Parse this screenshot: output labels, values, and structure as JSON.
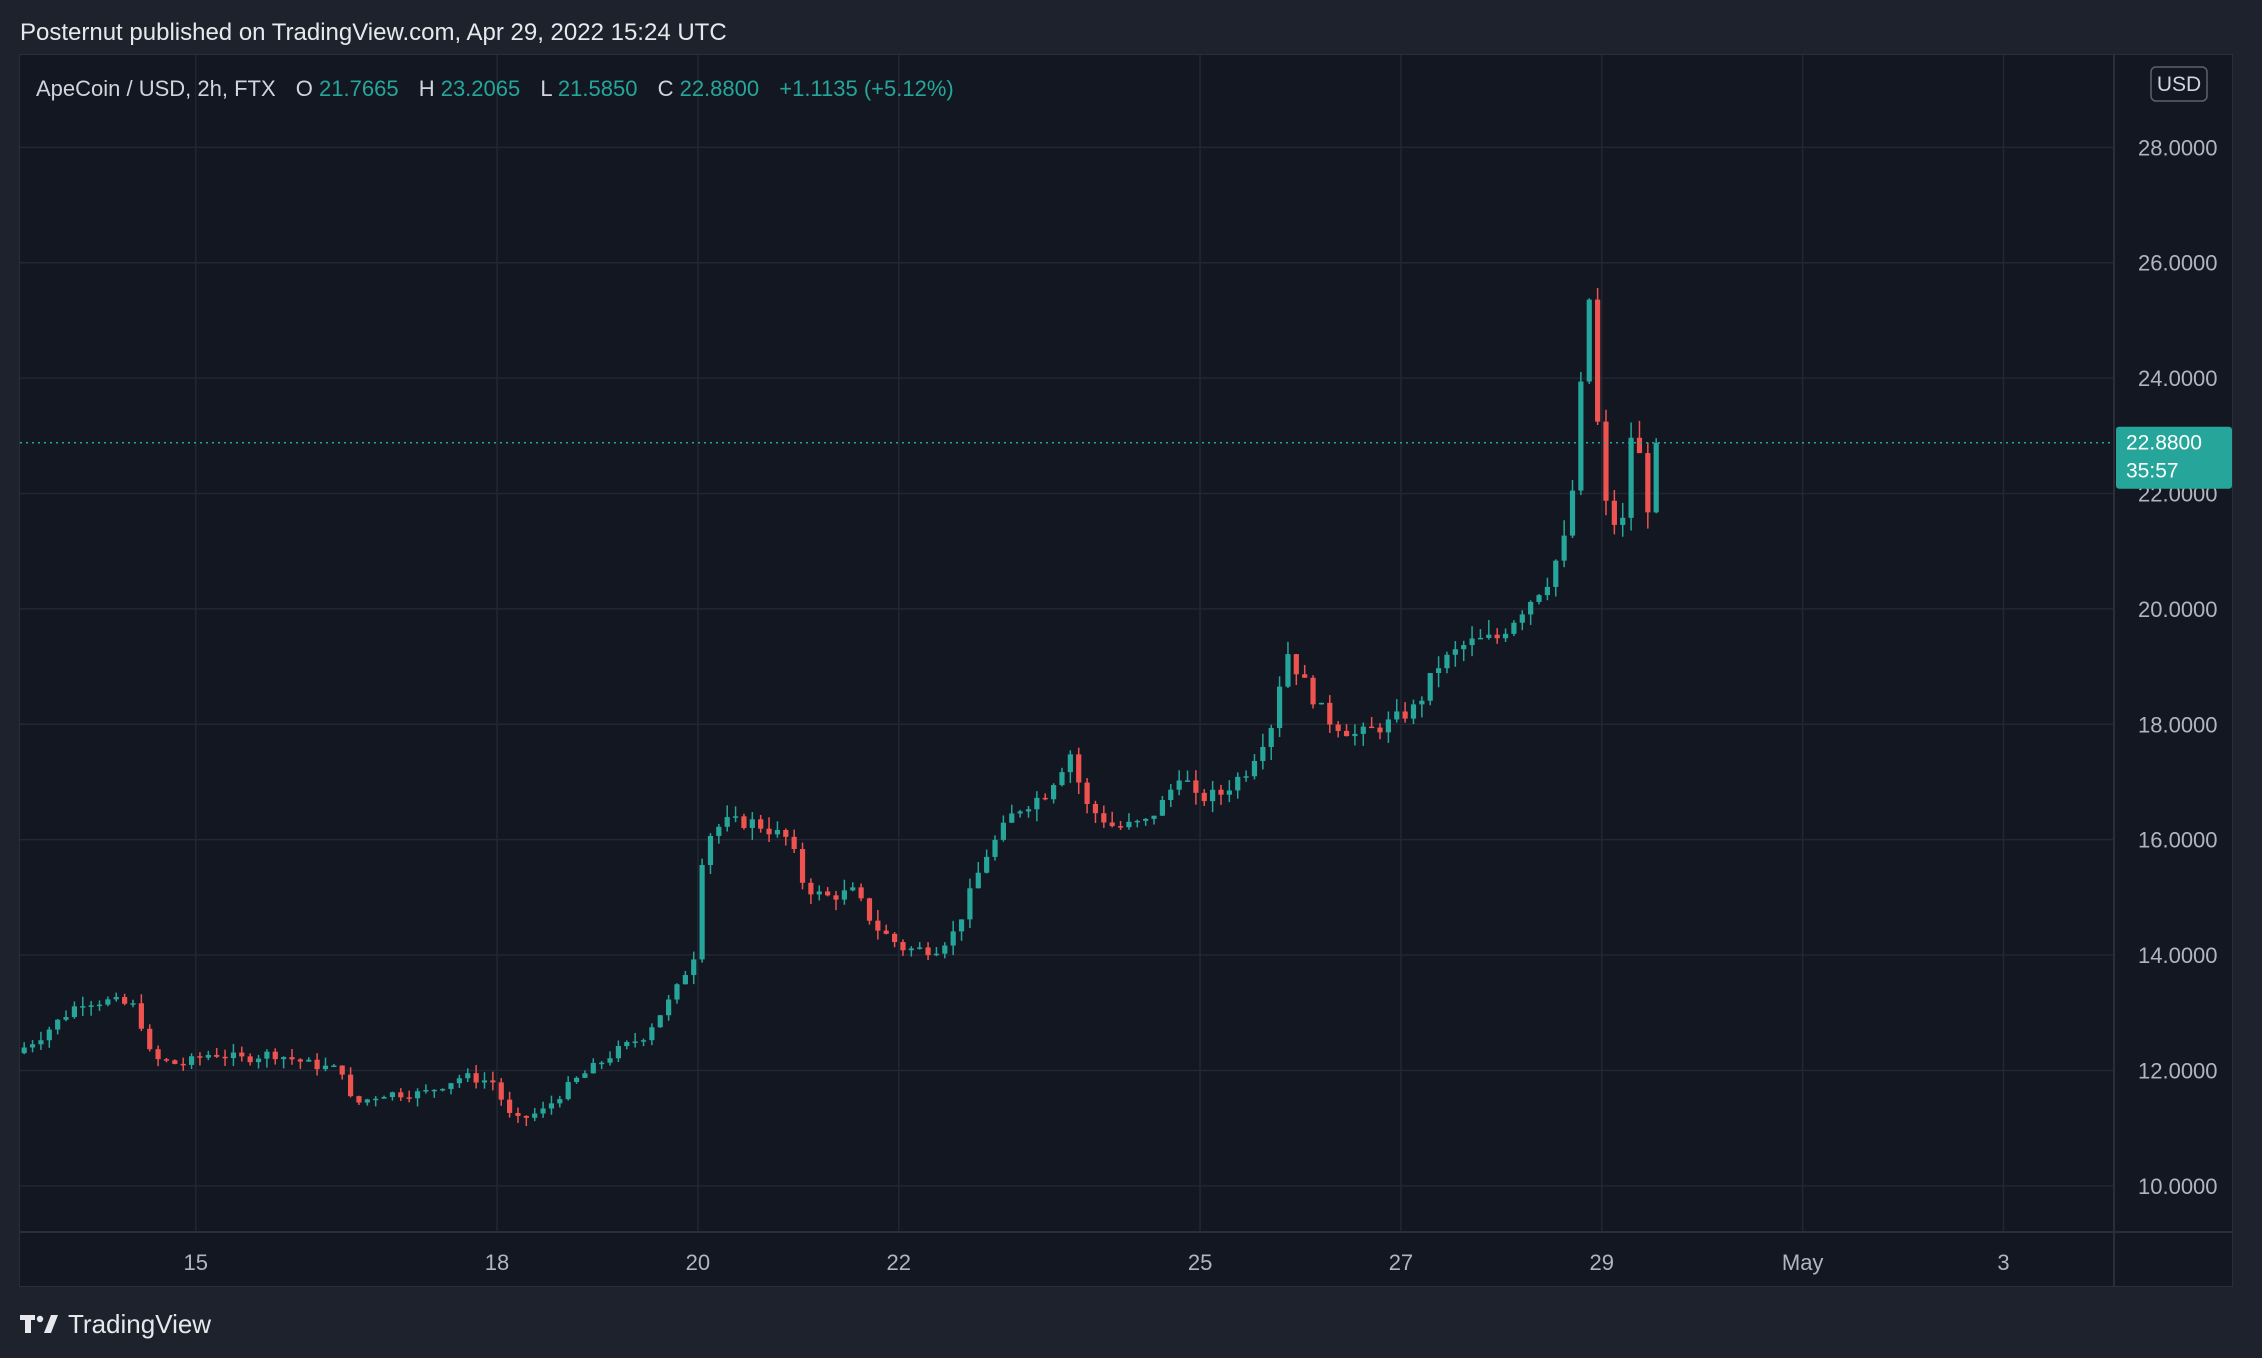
{
  "header": {
    "published_line": "Posternut published on TradingView.com, Apr 29, 2022 15:24 UTC"
  },
  "legend": {
    "symbol": "ApeCoin / USD, 2h, FTX",
    "open_label": "O",
    "open_value": "21.7665",
    "high_label": "H",
    "high_value": "23.2065",
    "low_label": "L",
    "low_value": "21.5850",
    "close_label": "C",
    "close_value": "22.8800",
    "change": "+1.1135 (+5.12%)"
  },
  "currency_badge": "USD",
  "price_tag": {
    "price": "22.8800",
    "countdown": "35:57"
  },
  "footer": {
    "logo_icon": "tradingview-logo-icon",
    "logo_text": "TradingView"
  },
  "colors": {
    "up": "#26a69a",
    "down": "#ef5350",
    "background": "#131722",
    "grid": "#232733",
    "axis_text": "#b2b5be"
  },
  "chart_data": {
    "type": "candlestick",
    "interval": "2h",
    "ylim": [
      9.2,
      29.6
    ],
    "yticks": [
      "28.0000",
      "26.0000",
      "24.0000",
      "22.0000",
      "20.0000",
      "18.0000",
      "16.0000",
      "14.0000",
      "12.0000",
      "10.0000"
    ],
    "xticks": [
      {
        "label": "15",
        "day": 15
      },
      {
        "label": "18",
        "day": 18
      },
      {
        "label": "20",
        "day": 20
      },
      {
        "label": "22",
        "day": 22
      },
      {
        "label": "25",
        "day": 25
      },
      {
        "label": "27",
        "day": 27
      },
      {
        "label": "29",
        "day": 29
      },
      {
        "label": "May",
        "day": 31
      },
      {
        "label": "3",
        "day": 33
      }
    ],
    "xlim_days": [
      13.25,
      34.1
    ],
    "last_price": 22.88,
    "keyframes": [
      [
        13.25,
        12.3
      ],
      [
        13.5,
        12.6
      ],
      [
        13.9,
        13.2
      ],
      [
        14.2,
        13.2
      ],
      [
        14.45,
        13.1
      ],
      [
        14.6,
        12.2
      ],
      [
        14.9,
        12.1
      ],
      [
        15.2,
        12.3
      ],
      [
        15.5,
        12.2
      ],
      [
        15.8,
        12.3
      ],
      [
        16.2,
        12.1
      ],
      [
        16.5,
        12.0
      ],
      [
        16.6,
        11.4
      ],
      [
        16.9,
        11.6
      ],
      [
        17.3,
        11.6
      ],
      [
        17.7,
        11.9
      ],
      [
        18.0,
        11.8
      ],
      [
        18.2,
        11.1
      ],
      [
        18.5,
        11.3
      ],
      [
        18.8,
        11.8
      ],
      [
        19.2,
        12.3
      ],
      [
        19.5,
        12.6
      ],
      [
        19.8,
        13.3
      ],
      [
        20.0,
        14.0
      ],
      [
        20.1,
        16.0
      ],
      [
        20.3,
        16.3
      ],
      [
        20.6,
        16.3
      ],
      [
        20.95,
        16.0
      ],
      [
        21.1,
        15.2
      ],
      [
        21.3,
        15.0
      ],
      [
        21.6,
        15.1
      ],
      [
        21.8,
        14.5
      ],
      [
        22.1,
        14.1
      ],
      [
        22.4,
        14.1
      ],
      [
        22.6,
        14.4
      ],
      [
        22.9,
        15.7
      ],
      [
        23.2,
        16.5
      ],
      [
        23.5,
        16.8
      ],
      [
        23.75,
        17.5
      ],
      [
        23.9,
        16.6
      ],
      [
        24.2,
        16.2
      ],
      [
        24.5,
        16.3
      ],
      [
        24.7,
        16.7
      ],
      [
        24.85,
        17.2
      ],
      [
        25.0,
        16.7
      ],
      [
        25.25,
        16.8
      ],
      [
        25.5,
        17.2
      ],
      [
        25.75,
        18.0
      ],
      [
        25.9,
        19.3
      ],
      [
        26.05,
        18.8
      ],
      [
        26.3,
        18.1
      ],
      [
        26.6,
        17.8
      ],
      [
        26.9,
        18.0
      ],
      [
        27.2,
        18.3
      ],
      [
        27.4,
        19.0
      ],
      [
        27.7,
        19.4
      ],
      [
        28.0,
        19.5
      ],
      [
        28.2,
        19.9
      ],
      [
        28.5,
        20.5
      ],
      [
        28.7,
        21.3
      ],
      [
        28.8,
        22.8
      ],
      [
        28.9,
        25.8
      ],
      [
        29.0,
        23.2
      ],
      [
        29.1,
        21.5
      ],
      [
        29.25,
        21.5
      ],
      [
        29.35,
        23.3
      ],
      [
        29.5,
        21.8
      ],
      [
        29.58,
        22.88
      ]
    ]
  }
}
